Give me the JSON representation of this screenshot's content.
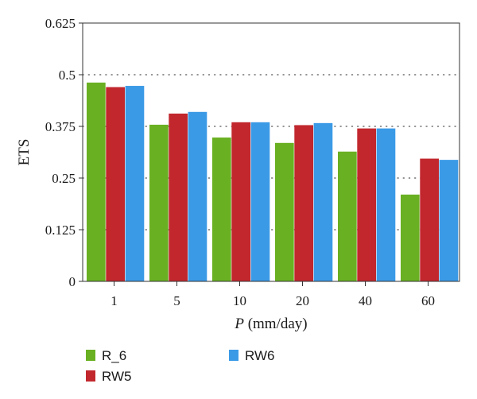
{
  "chart_data": {
    "type": "bar",
    "title": "",
    "xlabel_var": "P",
    "xlabel_unit": " (mm/day)",
    "ylabel": "ETS",
    "categories": [
      "1",
      "5",
      "10",
      "20",
      "40",
      "60"
    ],
    "series": [
      {
        "name": "R_6",
        "color": "#6ab023",
        "values": [
          0.481,
          0.379,
          0.348,
          0.335,
          0.314,
          0.21
        ]
      },
      {
        "name": "RW5",
        "color": "#c1272d",
        "values": [
          0.47,
          0.406,
          0.385,
          0.378,
          0.37,
          0.297
        ]
      },
      {
        "name": "RW6",
        "color": "#3b9ae6",
        "values": [
          0.473,
          0.41,
          0.385,
          0.383,
          0.37,
          0.294
        ]
      }
    ],
    "ylim": [
      0,
      0.625
    ],
    "yticks": [
      0,
      0.125,
      0.25,
      0.375,
      0.5,
      0.625
    ],
    "ytick_labels": [
      "0",
      "0.125",
      "0.25",
      "0.375",
      "0.5",
      "0.625"
    ],
    "grid": "horizontal dotted",
    "legend_position": "bottom-left"
  }
}
